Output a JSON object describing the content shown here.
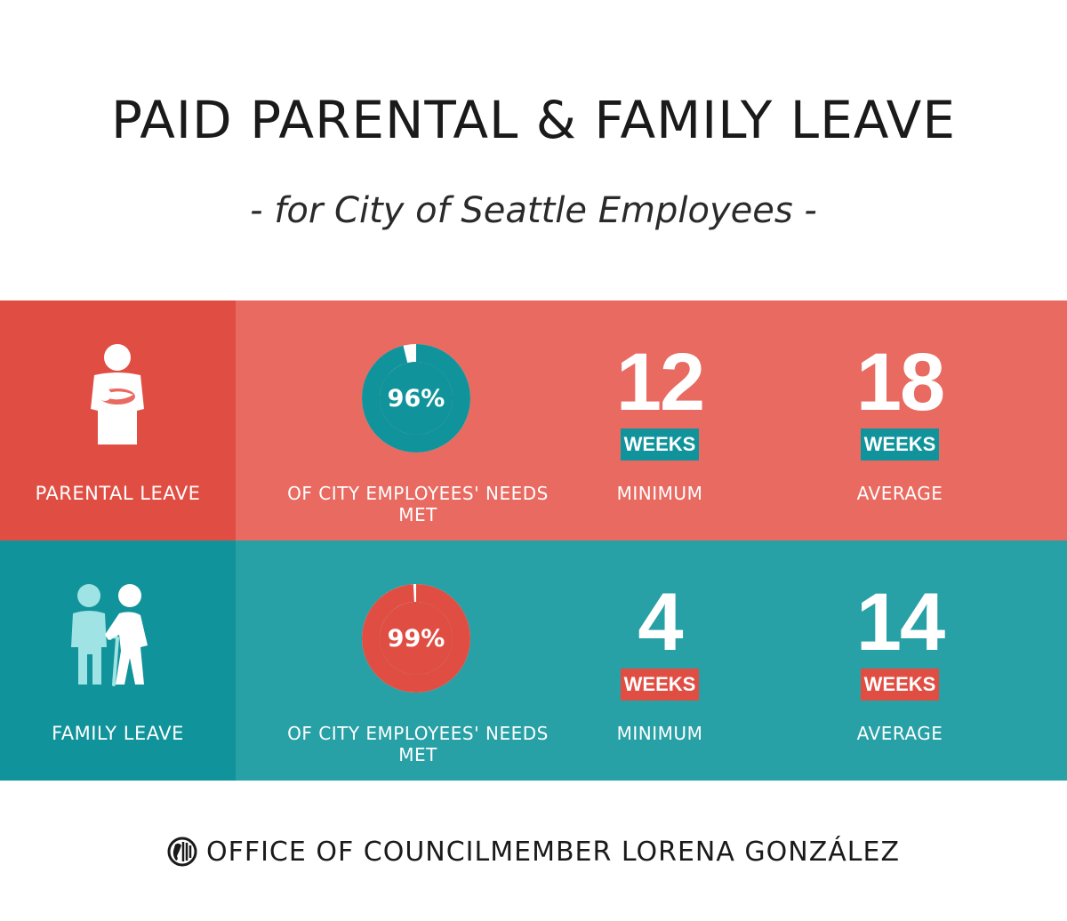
{
  "header": {
    "title": "PAID PARENTAL & FAMILY LEAVE",
    "subtitle": "- for City of Seattle Employees -"
  },
  "parental": {
    "label": "PARENTAL LEAVE",
    "icon": "person-holding-baby-icon",
    "needs_met_percent": 96,
    "needs_met_text": "96%",
    "needs_met_label": "OF CITY EMPLOYEES' NEEDS MET",
    "minimum_value": "12",
    "minimum_unit": "WEEKS",
    "minimum_label": "MINIMUM",
    "average_value": "18",
    "average_unit": "WEEKS",
    "average_label": "AVERAGE"
  },
  "family": {
    "label": "FAMILY LEAVE",
    "icon": "caregiver-helping-elder-icon",
    "needs_met_percent": 99,
    "needs_met_text": "99%",
    "needs_met_label": "OF CITY EMPLOYEES' NEEDS MET",
    "minimum_value": "4",
    "minimum_unit": "WEEKS",
    "minimum_label": "MINIMUM",
    "average_value": "14",
    "average_unit": "WEEKS",
    "average_label": "AVERAGE"
  },
  "footer": {
    "text": "OFFICE OF COUNCILMEMBER LORENA GONZÁLEZ",
    "icon": "city-seal-icon"
  },
  "colors": {
    "parental_band": "#e96a61",
    "parental_side": "#e04e43",
    "family_band": "#27a0a6",
    "family_side": "#10939a",
    "accent_teal": "#10939a",
    "accent_red": "#e04e43",
    "elder_figure": "#9fe3e4"
  }
}
